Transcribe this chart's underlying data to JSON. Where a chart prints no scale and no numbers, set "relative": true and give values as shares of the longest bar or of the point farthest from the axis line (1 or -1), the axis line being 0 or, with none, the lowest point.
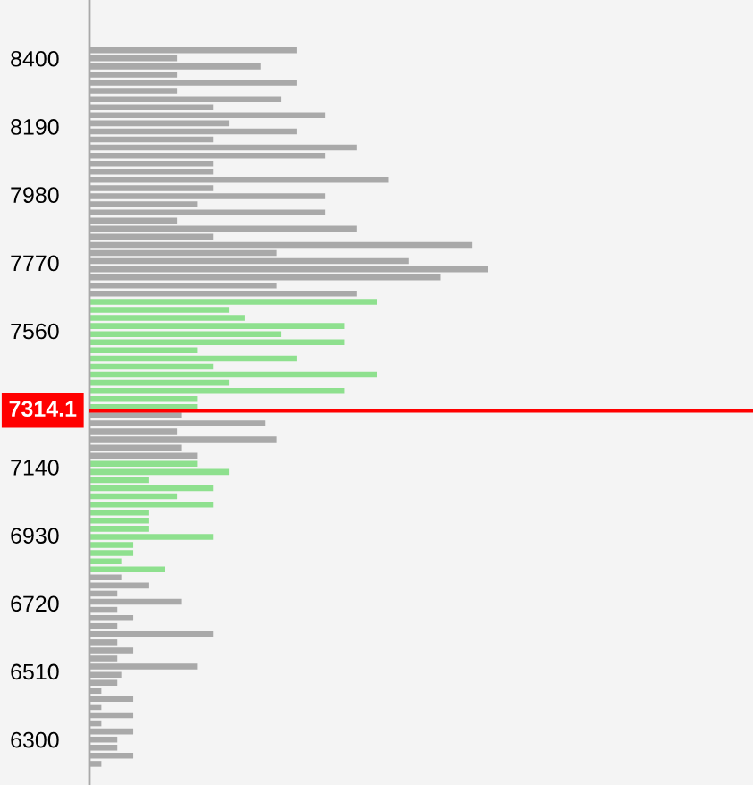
{
  "chart_data": {
    "type": "bar",
    "orientation": "horizontal",
    "relative": true,
    "x": [
      6225,
      6250,
      6275,
      6300,
      6325,
      6350,
      6375,
      6400,
      6425,
      6450,
      6475,
      6500,
      6525,
      6550,
      6575,
      6600,
      6625,
      6650,
      6675,
      6700,
      6725,
      6750,
      6775,
      6800,
      6825,
      6850,
      6875,
      6900,
      6925,
      6950,
      6975,
      7000,
      7025,
      7050,
      7075,
      7100,
      7125,
      7150,
      7175,
      7200,
      7225,
      7250,
      7275,
      7300,
      7325,
      7350,
      7375,
      7400,
      7425,
      7450,
      7475,
      7500,
      7525,
      7550,
      7575,
      7600,
      7625,
      7650,
      7675,
      7700,
      7725,
      7750,
      7775,
      7800,
      7825,
      7850,
      7875,
      7900,
      7925,
      7950,
      7975,
      8000,
      8025,
      8050,
      8075,
      8100,
      8125,
      8150,
      8175,
      8200,
      8225,
      8250,
      8275,
      8300,
      8325,
      8350,
      8375,
      8400,
      8425
    ],
    "values": [
      0.03,
      0.11,
      0.07,
      0.07,
      0.11,
      0.03,
      0.11,
      0.03,
      0.11,
      0.03,
      0.07,
      0.08,
      0.27,
      0.07,
      0.11,
      0.07,
      0.31,
      0.07,
      0.11,
      0.07,
      0.23,
      0.07,
      0.15,
      0.08,
      0.19,
      0.08,
      0.11,
      0.11,
      0.31,
      0.15,
      0.15,
      0.15,
      0.31,
      0.22,
      0.31,
      0.15,
      0.35,
      0.27,
      0.27,
      0.23,
      0.47,
      0.22,
      0.44,
      0.23,
      0.27,
      0.27,
      0.64,
      0.35,
      0.72,
      0.31,
      0.52,
      0.27,
      0.64,
      0.48,
      0.64,
      0.39,
      0.35,
      0.72,
      0.67,
      0.47,
      0.88,
      1,
      0.8,
      0.47,
      0.96,
      0.31,
      0.67,
      0.22,
      0.59,
      0.27,
      0.59,
      0.31,
      0.75,
      0.31,
      0.31,
      0.59,
      0.67,
      0.31,
      0.52,
      0.35,
      0.59,
      0.31,
      0.48,
      0.22,
      0.52,
      0.22,
      0.43,
      0.22,
      0.52
    ],
    "colors": [
      "#a9a9a9",
      "#a9a9a9",
      "#a9a9a9",
      "#a9a9a9",
      "#a9a9a9",
      "#a9a9a9",
      "#a9a9a9",
      "#a9a9a9",
      "#a9a9a9",
      "#a9a9a9",
      "#a9a9a9",
      "#a9a9a9",
      "#a9a9a9",
      "#a9a9a9",
      "#a9a9a9",
      "#a9a9a9",
      "#a9a9a9",
      "#a9a9a9",
      "#a9a9a9",
      "#a9a9a9",
      "#a9a9a9",
      "#a9a9a9",
      "#a9a9a9",
      "#a9a9a9",
      "#8ee08e",
      "#8ee08e",
      "#8ee08e",
      "#8ee08e",
      "#8ee08e",
      "#8ee08e",
      "#8ee08e",
      "#8ee08e",
      "#8ee08e",
      "#8ee08e",
      "#8ee08e",
      "#8ee08e",
      "#8ee08e",
      "#8ee08e",
      "#a9a9a9",
      "#a9a9a9",
      "#a9a9a9",
      "#a9a9a9",
      "#a9a9a9",
      "#a9a9a9",
      "#8ee08e",
      "#8ee08e",
      "#8ee08e",
      "#8ee08e",
      "#8ee08e",
      "#8ee08e",
      "#8ee08e",
      "#8ee08e",
      "#8ee08e",
      "#8ee08e",
      "#8ee08e",
      "#8ee08e",
      "#8ee08e",
      "#8ee08e",
      "#a9a9a9",
      "#a9a9a9",
      "#a9a9a9",
      "#a9a9a9",
      "#a9a9a9",
      "#a9a9a9",
      "#a9a9a9",
      "#a9a9a9",
      "#a9a9a9",
      "#a9a9a9",
      "#a9a9a9",
      "#a9a9a9",
      "#a9a9a9",
      "#a9a9a9",
      "#a9a9a9",
      "#a9a9a9",
      "#a9a9a9",
      "#a9a9a9",
      "#a9a9a9",
      "#a9a9a9",
      "#a9a9a9",
      "#a9a9a9",
      "#a9a9a9",
      "#a9a9a9",
      "#a9a9a9",
      "#a9a9a9",
      "#a9a9a9",
      "#a9a9a9",
      "#a9a9a9",
      "#a9a9a9",
      "#a9a9a9"
    ],
    "ylim": [
      6160,
      8580
    ],
    "yticks": [
      6300,
      6510,
      6720,
      6930,
      7140,
      7560,
      7770,
      7980,
      8190,
      8400
    ],
    "ref_lines": [
      {
        "axis": "y",
        "value": 7314.1,
        "label": "7314.1",
        "color": "#ff0000"
      }
    ]
  }
}
